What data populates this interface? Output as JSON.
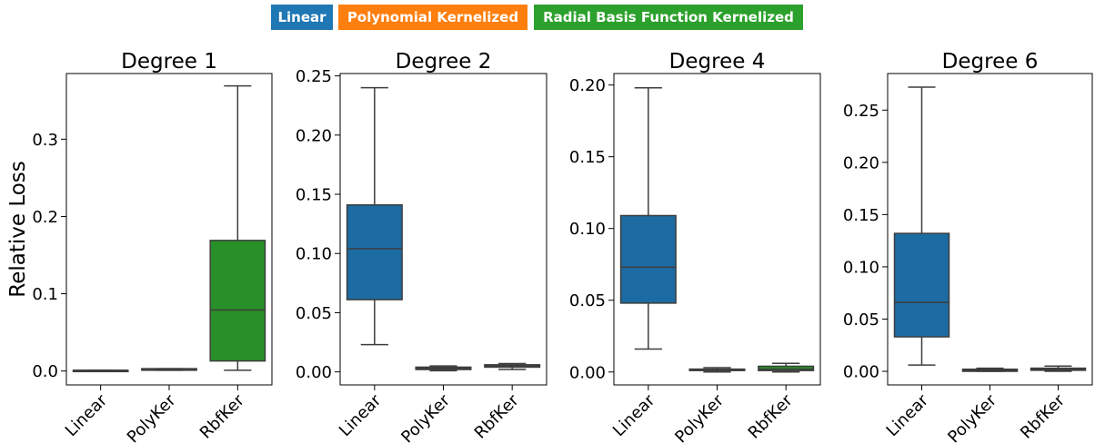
{
  "legend": [
    {
      "label": "Linear",
      "color": "#1f77b4"
    },
    {
      "label": "Polynomial Kernelized",
      "color": "#ff7f0e"
    },
    {
      "label": "Radial Basis Function Kernelized",
      "color": "#2ca02c"
    }
  ],
  "chart_data": [
    {
      "type": "box",
      "title": "Degree 1",
      "ylabel": "Relative Loss",
      "categories": [
        "Linear",
        "PolyKer",
        "RbfKer"
      ],
      "ylim": [
        -0.018,
        0.385
      ],
      "yticks": [
        0.0,
        0.1,
        0.2,
        0.3
      ],
      "ytick_labels": [
        "0.0",
        "0.1",
        "0.2",
        "0.3"
      ],
      "boxes": [
        {
          "category": "Linear",
          "color": "#1f77b4",
          "whisker_low": 0.0,
          "q1": 0.0,
          "median": 0.0,
          "q3": 0.001,
          "whisker_high": 0.001
        },
        {
          "category": "PolyKer",
          "color": "#ff7f0e",
          "whisker_low": 0.001,
          "q1": 0.001,
          "median": 0.002,
          "q3": 0.003,
          "whisker_high": 0.003
        },
        {
          "category": "RbfKer",
          "color": "#2ca02c",
          "whisker_low": 0.001,
          "q1": 0.013,
          "median": 0.079,
          "q3": 0.169,
          "whisker_high": 0.369
        }
      ]
    },
    {
      "type": "box",
      "title": "Degree 2",
      "ylabel": "",
      "categories": [
        "Linear",
        "PolyKer",
        "RbfKer"
      ],
      "ylim": [
        -0.011,
        0.252
      ],
      "yticks": [
        0.0,
        0.05,
        0.1,
        0.15,
        0.2,
        0.25
      ],
      "ytick_labels": [
        "0.00",
        "0.05",
        "0.10",
        "0.15",
        "0.20",
        "0.25"
      ],
      "boxes": [
        {
          "category": "Linear",
          "color": "#1f77b4",
          "whisker_low": 0.023,
          "q1": 0.061,
          "median": 0.104,
          "q3": 0.141,
          "whisker_high": 0.24
        },
        {
          "category": "PolyKer",
          "color": "#ff7f0e",
          "whisker_low": 0.001,
          "q1": 0.002,
          "median": 0.003,
          "q3": 0.004,
          "whisker_high": 0.005
        },
        {
          "category": "RbfKer",
          "color": "#2ca02c",
          "whisker_low": 0.002,
          "q1": 0.004,
          "median": 0.005,
          "q3": 0.006,
          "whisker_high": 0.007
        }
      ]
    },
    {
      "type": "box",
      "title": "Degree 4",
      "ylabel": "",
      "categories": [
        "Linear",
        "PolyKer",
        "RbfKer"
      ],
      "ylim": [
        -0.009,
        0.208
      ],
      "yticks": [
        0.0,
        0.05,
        0.1,
        0.15,
        0.2
      ],
      "ytick_labels": [
        "0.00",
        "0.05",
        "0.10",
        "0.15",
        "0.20"
      ],
      "boxes": [
        {
          "category": "Linear",
          "color": "#1f77b4",
          "whisker_low": 0.016,
          "q1": 0.048,
          "median": 0.073,
          "q3": 0.109,
          "whisker_high": 0.198
        },
        {
          "category": "PolyKer",
          "color": "#ff7f0e",
          "whisker_low": 0.0,
          "q1": 0.001,
          "median": 0.0015,
          "q3": 0.002,
          "whisker_high": 0.003
        },
        {
          "category": "RbfKer",
          "color": "#2ca02c",
          "whisker_low": 0.0,
          "q1": 0.001,
          "median": 0.002,
          "q3": 0.004,
          "whisker_high": 0.006
        }
      ]
    },
    {
      "type": "box",
      "title": "Degree 6",
      "ylabel": "",
      "categories": [
        "Linear",
        "PolyKer",
        "RbfKer"
      ],
      "ylim": [
        -0.013,
        0.285
      ],
      "yticks": [
        0.0,
        0.05,
        0.1,
        0.15,
        0.2,
        0.25
      ],
      "ytick_labels": [
        "0.00",
        "0.05",
        "0.10",
        "0.15",
        "0.20",
        "0.25"
      ],
      "boxes": [
        {
          "category": "Linear",
          "color": "#1f77b4",
          "whisker_low": 0.006,
          "q1": 0.033,
          "median": 0.066,
          "q3": 0.132,
          "whisker_high": 0.272
        },
        {
          "category": "PolyKer",
          "color": "#ff7f0e",
          "whisker_low": 0.0,
          "q1": 0.0,
          "median": 0.001,
          "q3": 0.002,
          "whisker_high": 0.003
        },
        {
          "category": "RbfKer",
          "color": "#2ca02c",
          "whisker_low": 0.0,
          "q1": 0.001,
          "median": 0.002,
          "q3": 0.003,
          "whisker_high": 0.005
        }
      ]
    }
  ]
}
